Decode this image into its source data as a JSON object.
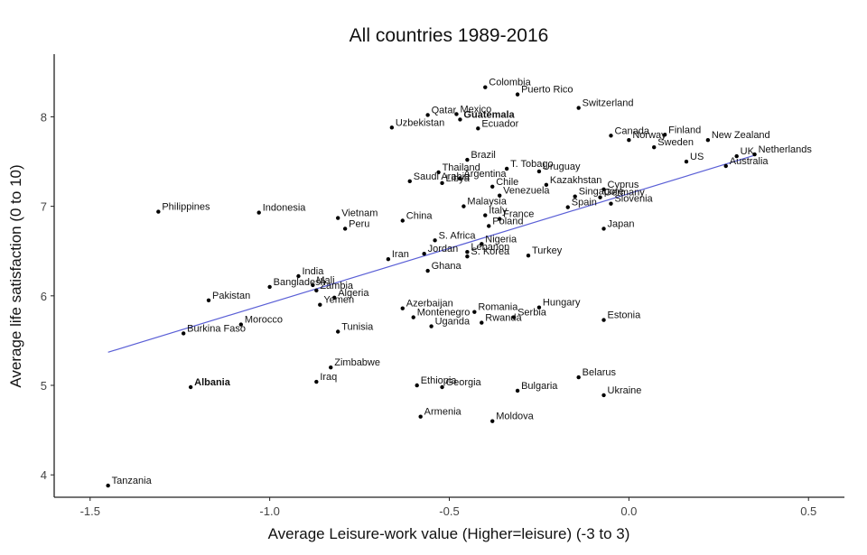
{
  "chart_data": {
    "type": "scatter",
    "title": "All countries 1989-2016",
    "xlabel": "Average Leisure-work value (Higher=leisure) (-3 to 3)",
    "ylabel": "Average life satisfaction (0 to 10)",
    "xlim": [
      -1.6,
      0.6
    ],
    "ylim": [
      3.75,
      8.7
    ],
    "xticks": [
      -1.5,
      -1.0,
      -0.5,
      0.0,
      0.5
    ],
    "xtick_labels": [
      "-1.5",
      "-1.0",
      "-0.5",
      "0.0",
      "0.5"
    ],
    "yticks": [
      4,
      5,
      6,
      7,
      8
    ],
    "ytick_labels": [
      "4",
      "5",
      "6",
      "7",
      "8"
    ],
    "grid": false,
    "trendline": {
      "x": [
        -1.45,
        0.35
      ],
      "y": [
        5.37,
        7.57
      ],
      "color": "#5a5fd6"
    },
    "point_color": "#000000",
    "points": [
      {
        "label": "Colombia",
        "x": -0.4,
        "y": 8.33
      },
      {
        "label": "Puerto Rico",
        "x": -0.31,
        "y": 8.25
      },
      {
        "label": "Switzerland",
        "x": -0.14,
        "y": 8.1
      },
      {
        "label": "Qatar",
        "x": -0.56,
        "y": 8.02
      },
      {
        "label": "Mexico",
        "x": -0.48,
        "y": 8.03
      },
      {
        "label": "Guatemala",
        "x": -0.47,
        "y": 7.97,
        "bold": true
      },
      {
        "label": "Ecuador",
        "x": -0.42,
        "y": 7.87
      },
      {
        "label": "Uzbekistan",
        "x": -0.66,
        "y": 7.88
      },
      {
        "label": "Canada",
        "x": -0.05,
        "y": 7.79
      },
      {
        "label": "Finland",
        "x": 0.1,
        "y": 7.8
      },
      {
        "label": "Norway",
        "x": 0.0,
        "y": 7.74
      },
      {
        "label": "New Zealand",
        "x": 0.22,
        "y": 7.74
      },
      {
        "label": "Sweden",
        "x": 0.07,
        "y": 7.66
      },
      {
        "label": "UK",
        "x": 0.3,
        "y": 7.56
      },
      {
        "label": "Netherlands",
        "x": 0.35,
        "y": 7.58
      },
      {
        "label": "US",
        "x": 0.16,
        "y": 7.5
      },
      {
        "label": "Australia",
        "x": 0.27,
        "y": 7.45
      },
      {
        "label": "Brazil",
        "x": -0.45,
        "y": 7.52
      },
      {
        "label": "T. Tobago",
        "x": -0.34,
        "y": 7.42
      },
      {
        "label": "Uruguay",
        "x": -0.25,
        "y": 7.39
      },
      {
        "label": "Thailand",
        "x": -0.53,
        "y": 7.38
      },
      {
        "label": "Saudi Arabia",
        "x": -0.61,
        "y": 7.28
      },
      {
        "label": "Argentina",
        "x": -0.47,
        "y": 7.31
      },
      {
        "label": "Chile",
        "x": -0.38,
        "y": 7.22
      },
      {
        "label": "Kazakhstan",
        "x": -0.23,
        "y": 7.24
      },
      {
        "label": "Libya",
        "x": -0.52,
        "y": 7.26
      },
      {
        "label": "Cyprus",
        "x": -0.07,
        "y": 7.19
      },
      {
        "label": "Venezuela",
        "x": -0.36,
        "y": 7.12
      },
      {
        "label": "Singapore",
        "x": -0.15,
        "y": 7.11
      },
      {
        "label": "Germany",
        "x": -0.08,
        "y": 7.1
      },
      {
        "label": "Malaysia",
        "x": -0.46,
        "y": 7.0
      },
      {
        "label": "Slovenia",
        "x": -0.05,
        "y": 7.03
      },
      {
        "label": "Spain",
        "x": -0.17,
        "y": 6.99
      },
      {
        "label": "Philippines",
        "x": -1.31,
        "y": 6.94
      },
      {
        "label": "Indonesia",
        "x": -1.03,
        "y": 6.93
      },
      {
        "label": "Vietnam",
        "x": -0.81,
        "y": 6.87
      },
      {
        "label": "China",
        "x": -0.63,
        "y": 6.84
      },
      {
        "label": "Italy",
        "x": -0.4,
        "y": 6.9
      },
      {
        "label": "France",
        "x": -0.36,
        "y": 6.86
      },
      {
        "label": "Peru",
        "x": -0.79,
        "y": 6.75
      },
      {
        "label": "Poland",
        "x": -0.39,
        "y": 6.78
      },
      {
        "label": "Japan",
        "x": -0.07,
        "y": 6.75
      },
      {
        "label": "S. Africa",
        "x": -0.54,
        "y": 6.62
      },
      {
        "label": "Nigeria",
        "x": -0.41,
        "y": 6.58
      },
      {
        "label": "Jordan",
        "x": -0.57,
        "y": 6.47
      },
      {
        "label": "Lebanon",
        "x": -0.45,
        "y": 6.49
      },
      {
        "label": "Iran",
        "x": -0.67,
        "y": 6.41
      },
      {
        "label": "S. Korea",
        "x": -0.45,
        "y": 6.44
      },
      {
        "label": "Turkey",
        "x": -0.28,
        "y": 6.45
      },
      {
        "label": "Ghana",
        "x": -0.56,
        "y": 6.28
      },
      {
        "label": "India",
        "x": -0.92,
        "y": 6.22
      },
      {
        "label": "Bangladesh",
        "x": -1.0,
        "y": 6.1
      },
      {
        "label": "Mali",
        "x": -0.88,
        "y": 6.12
      },
      {
        "label": "Zambia",
        "x": -0.87,
        "y": 6.06
      },
      {
        "label": "Pakistan",
        "x": -1.17,
        "y": 5.95
      },
      {
        "label": "Algeria",
        "x": -0.82,
        "y": 5.98
      },
      {
        "label": "Yemen",
        "x": -0.86,
        "y": 5.9
      },
      {
        "label": "Azerbaijan",
        "x": -0.63,
        "y": 5.86
      },
      {
        "label": "Romania",
        "x": -0.43,
        "y": 5.82
      },
      {
        "label": "Hungary",
        "x": -0.25,
        "y": 5.87
      },
      {
        "label": "Montenegro",
        "x": -0.6,
        "y": 5.76
      },
      {
        "label": "Serbia",
        "x": -0.32,
        "y": 5.76
      },
      {
        "label": "Estonia",
        "x": -0.07,
        "y": 5.73
      },
      {
        "label": "Uganda",
        "x": -0.55,
        "y": 5.66
      },
      {
        "label": "Rwanda",
        "x": -0.41,
        "y": 5.7
      },
      {
        "label": "Morocco",
        "x": -1.08,
        "y": 5.68
      },
      {
        "label": "Tunisia",
        "x": -0.81,
        "y": 5.6
      },
      {
        "label": "Burkina Faso",
        "x": -1.24,
        "y": 5.58
      },
      {
        "label": "Zimbabwe",
        "x": -0.83,
        "y": 5.2
      },
      {
        "label": "Belarus",
        "x": -0.14,
        "y": 5.09
      },
      {
        "label": "Iraq",
        "x": -0.87,
        "y": 5.04
      },
      {
        "label": "Ethiopia",
        "x": -0.59,
        "y": 5.0
      },
      {
        "label": "Albania",
        "x": -1.22,
        "y": 4.98,
        "bold": true
      },
      {
        "label": "Georgia",
        "x": -0.52,
        "y": 4.98
      },
      {
        "label": "Bulgaria",
        "x": -0.31,
        "y": 4.94
      },
      {
        "label": "Ukraine",
        "x": -0.07,
        "y": 4.89
      },
      {
        "label": "Armenia",
        "x": -0.58,
        "y": 4.65
      },
      {
        "label": "Moldova",
        "x": -0.38,
        "y": 4.6
      },
      {
        "label": "Tanzania",
        "x": -1.45,
        "y": 3.88
      }
    ]
  }
}
